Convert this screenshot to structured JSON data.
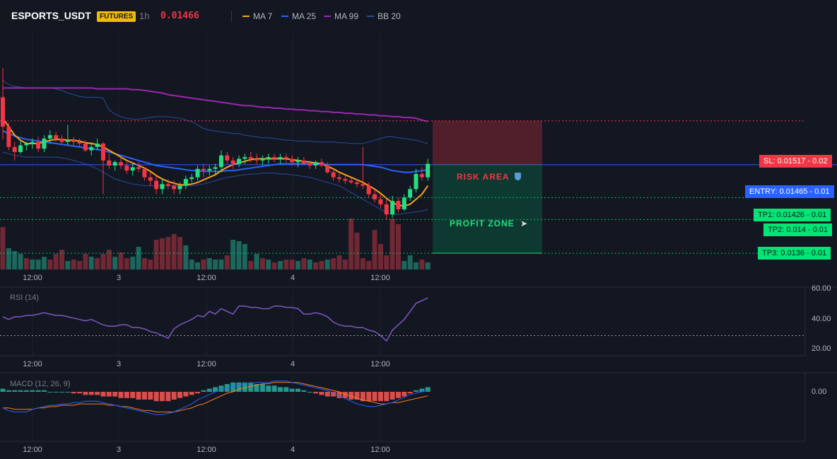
{
  "header": {
    "symbol": "ESPORTS_USDT",
    "badge": "FUTURES",
    "timeframe": "1h",
    "last_price": "0.01466",
    "legend": [
      {
        "label": "MA 7",
        "color": "#f7a21b"
      },
      {
        "label": "MA 25",
        "color": "#2962ff"
      },
      {
        "label": "MA 99",
        "color": "#9c27b0"
      },
      {
        "label": "BB 20",
        "color": "#2a4a9c"
      }
    ]
  },
  "levels": {
    "sl": {
      "label": "SL: 0.01517 - 0.02",
      "price": 0.01517,
      "color": "#f23645"
    },
    "entry": {
      "label": "ENTRY: 0.01465 - 0.01",
      "price": 0.01465,
      "color": "#2962ff"
    },
    "tp1": {
      "label": "TP1: 0.01426 - 0.01",
      "price": 0.01426,
      "color": "#00e676"
    },
    "tp2": {
      "label": "TP2: 0.014 - 0.01",
      "price": 0.014,
      "color": "#00e676"
    },
    "tp3": {
      "label": "TP3: 0.0136 - 0.01",
      "price": 0.0136,
      "color": "#00e676"
    }
  },
  "zones": {
    "risk_label": "RISK AREA",
    "profit_label": "PROFIT ZONE"
  },
  "time_axis": [
    "12:00",
    "3",
    "12:00",
    "4",
    "12:00"
  ],
  "rsi": {
    "title": "RSI (14)",
    "ticks": [
      "60.00",
      "40.00",
      "20.00"
    ]
  },
  "macd": {
    "title": "MACD (12, 26, 9)",
    "ticks": [
      "0.00"
    ]
  },
  "chart_data": {
    "type": "candlestick",
    "price_range": [
      0.0136,
      0.0161
    ],
    "candles": [
      [
        0.01545,
        0.0158,
        0.01495,
        0.0151
      ],
      [
        0.0151,
        0.01515,
        0.01482,
        0.01486
      ],
      [
        0.01486,
        0.01492,
        0.0147,
        0.0148
      ],
      [
        0.0148,
        0.01494,
        0.01478,
        0.01488
      ],
      [
        0.01488,
        0.01492,
        0.01482,
        0.0149
      ],
      [
        0.0149,
        0.01496,
        0.01484,
        0.01492
      ],
      [
        0.01492,
        0.01498,
        0.0148,
        0.01484
      ],
      [
        0.01484,
        0.015,
        0.0148,
        0.01496
      ],
      [
        0.01496,
        0.01506,
        0.0149,
        0.015
      ],
      [
        0.015,
        0.01504,
        0.01492,
        0.01496
      ],
      [
        0.01496,
        0.015,
        0.0149,
        0.01492
      ],
      [
        0.01492,
        0.01512,
        0.01488,
        0.01494
      ],
      [
        0.01494,
        0.01498,
        0.01488,
        0.01492
      ],
      [
        0.01492,
        0.01496,
        0.01486,
        0.0149
      ],
      [
        0.0149,
        0.01494,
        0.0148,
        0.01482
      ],
      [
        0.01482,
        0.01492,
        0.01476,
        0.01486
      ],
      [
        0.01486,
        0.01496,
        0.01482,
        0.0149
      ],
      [
        0.0149,
        0.01492,
        0.0143,
        0.0147
      ],
      [
        0.0147,
        0.01478,
        0.0146,
        0.01464
      ],
      [
        0.01464,
        0.0147,
        0.01458,
        0.01468
      ],
      [
        0.01468,
        0.01474,
        0.0146,
        0.01464
      ],
      [
        0.01464,
        0.01468,
        0.01454,
        0.01458
      ],
      [
        0.01458,
        0.01466,
        0.01452,
        0.01462
      ],
      [
        0.01462,
        0.01468,
        0.01456,
        0.0146
      ],
      [
        0.0146,
        0.01462,
        0.01446,
        0.0145
      ],
      [
        0.0145,
        0.01456,
        0.0144,
        0.01446
      ],
      [
        0.01446,
        0.01452,
        0.0143,
        0.01436
      ],
      [
        0.01436,
        0.01448,
        0.0143,
        0.01442
      ],
      [
        0.01442,
        0.01448,
        0.01436,
        0.0144
      ],
      [
        0.0144,
        0.01446,
        0.0143,
        0.01436
      ],
      [
        0.01436,
        0.01444,
        0.0143,
        0.0144
      ],
      [
        0.0144,
        0.01452,
        0.01436,
        0.01448
      ],
      [
        0.01448,
        0.01454,
        0.01444,
        0.0145
      ],
      [
        0.0145,
        0.01464,
        0.01446,
        0.0146
      ],
      [
        0.0146,
        0.01466,
        0.0145,
        0.01458
      ],
      [
        0.01458,
        0.01464,
        0.01452,
        0.0146
      ],
      [
        0.0146,
        0.01466,
        0.01454,
        0.01462
      ],
      [
        0.01462,
        0.01482,
        0.01456,
        0.01476
      ],
      [
        0.01476,
        0.0148,
        0.01466,
        0.0147
      ],
      [
        0.0147,
        0.01474,
        0.0146,
        0.01466
      ],
      [
        0.01466,
        0.01476,
        0.01462,
        0.01472
      ],
      [
        0.01472,
        0.01478,
        0.01466,
        0.01474
      ],
      [
        0.01474,
        0.0148,
        0.01468,
        0.01472
      ],
      [
        0.01472,
        0.01478,
        0.01466,
        0.0147
      ],
      [
        0.0147,
        0.01476,
        0.01464,
        0.01472
      ],
      [
        0.01472,
        0.01478,
        0.01466,
        0.01474
      ],
      [
        0.01474,
        0.01478,
        0.01468,
        0.01472
      ],
      [
        0.01472,
        0.01478,
        0.01466,
        0.01474
      ],
      [
        0.01474,
        0.01478,
        0.01468,
        0.01472
      ],
      [
        0.01472,
        0.01476,
        0.01464,
        0.01468
      ],
      [
        0.01468,
        0.01474,
        0.01462,
        0.0147
      ],
      [
        0.0147,
        0.01474,
        0.01464,
        0.01466
      ],
      [
        0.01466,
        0.0147,
        0.0146,
        0.01464
      ],
      [
        0.01464,
        0.0147,
        0.0146,
        0.01468
      ],
      [
        0.01468,
        0.01472,
        0.01462,
        0.01464
      ],
      [
        0.01464,
        0.01468,
        0.01454,
        0.01456
      ],
      [
        0.01456,
        0.0146,
        0.01446,
        0.0145
      ],
      [
        0.0145,
        0.01454,
        0.01444,
        0.01448
      ],
      [
        0.01448,
        0.01452,
        0.01442,
        0.01446
      ],
      [
        0.01446,
        0.0145,
        0.01442,
        0.01444
      ],
      [
        0.01444,
        0.01448,
        0.01438,
        0.01442
      ],
      [
        0.01442,
        0.01486,
        0.01436,
        0.0144
      ],
      [
        0.0144,
        0.01444,
        0.01426,
        0.0143
      ],
      [
        0.0143,
        0.01436,
        0.0142,
        0.01424
      ],
      [
        0.01424,
        0.0143,
        0.01414,
        0.01418
      ],
      [
        0.01418,
        0.01424,
        0.014,
        0.01406
      ],
      [
        0.01406,
        0.01428,
        0.01402,
        0.01422
      ],
      [
        0.01422,
        0.01426,
        0.01408,
        0.01412
      ],
      [
        0.01412,
        0.0143,
        0.0141,
        0.01426
      ],
      [
        0.01426,
        0.0144,
        0.01422,
        0.01436
      ],
      [
        0.01436,
        0.0146,
        0.01432,
        0.01454
      ],
      [
        0.01454,
        0.01462,
        0.01446,
        0.0145
      ],
      [
        0.0145,
        0.01472,
        0.01446,
        0.01466
      ]
    ],
    "ma7": [
      0.0152,
      0.0151,
      0.015,
      0.01494,
      0.0149,
      0.0149,
      0.0149,
      0.01492,
      0.01494,
      0.01495,
      0.01495,
      0.01494,
      0.01494,
      0.01493,
      0.01491,
      0.0149,
      0.01489,
      0.01486,
      0.01482,
      0.01478,
      0.01474,
      0.0147,
      0.01467,
      0.01464,
      0.01461,
      0.01457,
      0.01452,
      0.01448,
      0.01445,
      0.01443,
      0.01441,
      0.01441,
      0.01442,
      0.01444,
      0.01447,
      0.0145,
      0.01453,
      0.01458,
      0.01462,
      0.01465,
      0.01467,
      0.01469,
      0.01471,
      0.01472,
      0.01472,
      0.01472,
      0.01472,
      0.01472,
      0.01472,
      0.01471,
      0.0147,
      0.01469,
      0.01468,
      0.01467,
      0.01466,
      0.01463,
      0.0146,
      0.01456,
      0.01453,
      0.0145,
      0.01447,
      0.01444,
      0.0144,
      0.01436,
      0.01431,
      0.01425,
      0.0142,
      0.01417,
      0.01416,
      0.01418,
      0.01424,
      0.0143,
      0.0144
    ],
    "ma25": [
      0.01505,
      0.01502,
      0.01499,
      0.01497,
      0.01495,
      0.01494,
      0.01493,
      0.01492,
      0.01491,
      0.0149,
      0.01489,
      0.01488,
      0.01487,
      0.01486,
      0.01485,
      0.01484,
      0.01483,
      0.01482,
      0.0148,
      0.01478,
      0.01476,
      0.01474,
      0.01472,
      0.0147,
      0.01468,
      0.01466,
      0.01464,
      0.01463,
      0.01462,
      0.01461,
      0.0146,
      0.01459,
      0.01458,
      0.01458,
      0.01457,
      0.01457,
      0.01457,
      0.01457,
      0.01458,
      0.01458,
      0.01459,
      0.0146,
      0.01461,
      0.01462,
      0.01463,
      0.01464,
      0.01465,
      0.01466,
      0.01466,
      0.01466,
      0.01466,
      0.01466,
      0.01466,
      0.01466,
      0.01466,
      0.01465,
      0.01465,
      0.01465,
      0.01465,
      0.01465,
      0.01465,
      0.01465,
      0.01464,
      0.01463,
      0.01462,
      0.0146,
      0.01458,
      0.01457,
      0.01456,
      0.01456,
      0.01457,
      0.01458,
      0.01459
    ],
    "ma99": [
      0.01556,
      0.01556,
      0.01556,
      0.01556,
      0.01556,
      0.01556,
      0.01556,
      0.01556,
      0.01556,
      0.01556,
      0.01556,
      0.01556,
      0.01556,
      0.01556,
      0.01556,
      0.01556,
      0.01555,
      0.01555,
      0.01555,
      0.01555,
      0.01555,
      0.01555,
      0.01554,
      0.01554,
      0.01553,
      0.01552,
      0.01551,
      0.0155,
      0.01548,
      0.01547,
      0.01546,
      0.01545,
      0.01544,
      0.01543,
      0.01542,
      0.01541,
      0.0154,
      0.01539,
      0.01538,
      0.01537,
      0.01536,
      0.01535,
      0.01535,
      0.01534,
      0.01533,
      0.01533,
      0.01532,
      0.01532,
      0.01531,
      0.01531,
      0.0153,
      0.0153,
      0.01529,
      0.01529,
      0.01528,
      0.01528,
      0.01527,
      0.01527,
      0.01526,
      0.01526,
      0.01525,
      0.01525,
      0.01524,
      0.01524,
      0.01523,
      0.01523,
      0.01522,
      0.01522,
      0.01521,
      0.01521,
      0.0152,
      0.01518,
      0.01516
    ],
    "bb_upper": [
      0.01565,
      0.0156,
      0.01558,
      0.01557,
      0.01556,
      0.01556,
      0.01556,
      0.01556,
      0.01556,
      0.01555,
      0.01553,
      0.0155,
      0.01548,
      0.01546,
      0.01545,
      0.01545,
      0.01545,
      0.01544,
      0.0153,
      0.01525,
      0.01522,
      0.0152,
      0.01519,
      0.01519,
      0.0152,
      0.01521,
      0.01522,
      0.01522,
      0.01522,
      0.01521,
      0.0152,
      0.01518,
      0.01516,
      0.01512,
      0.01508,
      0.01506,
      0.01505,
      0.01504,
      0.01503,
      0.01502,
      0.01502,
      0.015,
      0.01499,
      0.01498,
      0.01497,
      0.01497,
      0.01496,
      0.01495,
      0.01494,
      0.01494,
      0.01493,
      0.01493,
      0.01493,
      0.01492,
      0.01492,
      0.01492,
      0.01492,
      0.01491,
      0.01491,
      0.0149,
      0.0149,
      0.0149,
      0.01492,
      0.01494,
      0.01496,
      0.01498,
      0.01498,
      0.01497,
      0.01496,
      0.01495,
      0.01494,
      0.01492,
      0.0149
    ],
    "bb_lower": [
      0.0148,
      0.01478,
      0.01476,
      0.01475,
      0.01474,
      0.01474,
      0.01474,
      0.01474,
      0.01474,
      0.01474,
      0.01473,
      0.01472,
      0.0147,
      0.01468,
      0.01466,
      0.01463,
      0.0146,
      0.01456,
      0.01452,
      0.01448,
      0.01446,
      0.01444,
      0.01442,
      0.01441,
      0.0144,
      0.0144,
      0.0144,
      0.0144,
      0.0144,
      0.0144,
      0.0144,
      0.0144,
      0.0144,
      0.01441,
      0.01442,
      0.01444,
      0.01446,
      0.01448,
      0.0145,
      0.01451,
      0.01452,
      0.01453,
      0.01454,
      0.01454,
      0.01455,
      0.01455,
      0.01455,
      0.01454,
      0.01454,
      0.01453,
      0.01452,
      0.01451,
      0.0145,
      0.01448,
      0.01446,
      0.01444,
      0.01442,
      0.0144,
      0.01436,
      0.01432,
      0.01428,
      0.01424,
      0.0142,
      0.01416,
      0.01412,
      0.01408,
      0.01406,
      0.01406,
      0.01407,
      0.01408,
      0.01409,
      0.0141,
      0.01412
    ],
    "volume": [
      60,
      30,
      26,
      22,
      16,
      14,
      14,
      18,
      14,
      22,
      28,
      12,
      14,
      12,
      22,
      18,
      16,
      22,
      28,
      18,
      24,
      16,
      18,
      32,
      16,
      14,
      42,
      44,
      46,
      50,
      46,
      34,
      14,
      10,
      14,
      16,
      14,
      14,
      20,
      42,
      40,
      36,
      12,
      22,
      16,
      14,
      10,
      12,
      14,
      14,
      12,
      16,
      14,
      10,
      12,
      14,
      16,
      20,
      14,
      72,
      52,
      16,
      12,
      56,
      36,
      20,
      72,
      64,
      12,
      20,
      10,
      14,
      10
    ],
    "volume_up": [
      false,
      true,
      true,
      true,
      false,
      true,
      true,
      true,
      false,
      false,
      false,
      true,
      false,
      false,
      false,
      true,
      false,
      false,
      false,
      true,
      false,
      false,
      true,
      true,
      false,
      false,
      false,
      false,
      false,
      false,
      false,
      true,
      true,
      true,
      false,
      true,
      true,
      true,
      false,
      true,
      true,
      true,
      false,
      true,
      false,
      true,
      false,
      true,
      false,
      false,
      true,
      false,
      true,
      false,
      false,
      true,
      false,
      false,
      false,
      false,
      false,
      false,
      false,
      false,
      false,
      false,
      false,
      false,
      true,
      true,
      true,
      false,
      true
    ],
    "rsi": [
      44,
      42,
      44,
      44,
      45,
      45,
      46,
      47,
      46,
      45,
      45,
      44,
      43,
      42,
      41,
      42,
      40,
      38,
      37,
      37,
      38,
      38,
      36,
      36,
      35,
      33,
      32,
      30,
      28,
      35,
      38,
      40,
      42,
      45,
      44,
      48,
      46,
      50,
      48,
      46,
      52,
      52,
      51,
      51,
      50,
      50,
      52,
      52,
      51,
      51,
      50,
      46,
      46,
      47,
      46,
      44,
      40,
      38,
      37,
      37,
      36,
      36,
      34,
      33,
      30,
      26,
      34,
      38,
      42,
      48,
      54,
      56,
      58
    ],
    "rsi_guide": 30,
    "rsi_range": [
      15,
      65
    ],
    "macd_hist": [
      2,
      1,
      1,
      1,
      1,
      1,
      1,
      1,
      0,
      0,
      0,
      0,
      -1,
      -1,
      -2,
      -2,
      -2,
      -3,
      -3,
      -3,
      -4,
      -4,
      -4,
      -5,
      -5,
      -5,
      -6,
      -6,
      -6,
      -5,
      -4,
      -3,
      -2,
      -1,
      1,
      2,
      3,
      4,
      5,
      6,
      6,
      6,
      6,
      5,
      5,
      4,
      4,
      3,
      3,
      2,
      2,
      1,
      0,
      -1,
      -2,
      -3,
      -3,
      -4,
      -4,
      -5,
      -5,
      -6,
      -6,
      -6,
      -6,
      -6,
      -5,
      -4,
      -3,
      -1,
      1,
      2,
      3
    ],
    "macd_line": [
      -0.00012,
      -0.00014,
      -0.00015,
      -0.00015,
      -0.00015,
      -0.00013,
      -0.00012,
      -0.00011,
      -0.0001,
      -0.0001,
      -9e-05,
      -9e-05,
      -8e-05,
      -8e-05,
      -7e-05,
      -7e-05,
      -7e-05,
      -8e-05,
      -9e-05,
      -0.0001,
      -0.00011,
      -0.00012,
      -0.00013,
      -0.00014,
      -0.00015,
      -0.00016,
      -0.00017,
      -0.00017,
      -0.00016,
      -0.00015,
      -0.00013,
      -0.00011,
      -9e-05,
      -6e-05,
      -4e-05,
      -2e-05,
      0.0,
      2e-05,
      3e-05,
      4e-05,
      5e-05,
      6e-05,
      6e-05,
      7e-05,
      7e-05,
      7e-05,
      8e-05,
      8e-05,
      8e-05,
      7e-05,
      6e-05,
      5e-05,
      4e-05,
      3e-05,
      2e-05,
      1e-05,
      -1e-05,
      -3e-05,
      -5e-05,
      -7e-05,
      -9e-05,
      -0.0001,
      -0.00011,
      -0.00011,
      -0.0001,
      -9e-05,
      -8e-05,
      -6e-05,
      -4e-05,
      -2e-05,
      -1e-05,
      0.0,
      1e-05
    ],
    "signal_line": [
      -0.00012,
      -0.00012,
      -0.00013,
      -0.00013,
      -0.00013,
      -0.00013,
      -0.00012,
      -0.00012,
      -0.00011,
      -0.00011,
      -0.0001,
      -0.0001,
      -0.0001,
      -9e-05,
      -9e-05,
      -9e-05,
      -9e-05,
      -9e-05,
      -0.0001,
      -0.0001,
      -0.00011,
      -0.00011,
      -0.00012,
      -0.00013,
      -0.00014,
      -0.00014,
      -0.00015,
      -0.00015,
      -0.00015,
      -0.00015,
      -0.00014,
      -0.00013,
      -0.00012,
      -0.0001,
      -9e-05,
      -7e-05,
      -5e-05,
      -3e-05,
      -1e-05,
      0.0,
      2e-05,
      3e-05,
      4e-05,
      5e-05,
      6e-05,
      6e-05,
      7e-05,
      7e-05,
      7e-05,
      7e-05,
      7e-05,
      6e-05,
      5e-05,
      4e-05,
      3e-05,
      2e-05,
      1e-05,
      0.0,
      -2e-05,
      -3e-05,
      -5e-05,
      -6e-05,
      -7e-05,
      -8e-05,
      -9e-05,
      -9e-05,
      -8e-05,
      -8e-05,
      -7e-05,
      -6e-05,
      -5e-05,
      -4e-05,
      -3e-05
    ],
    "macd_range": [
      -0.00022,
      0.00014
    ]
  }
}
